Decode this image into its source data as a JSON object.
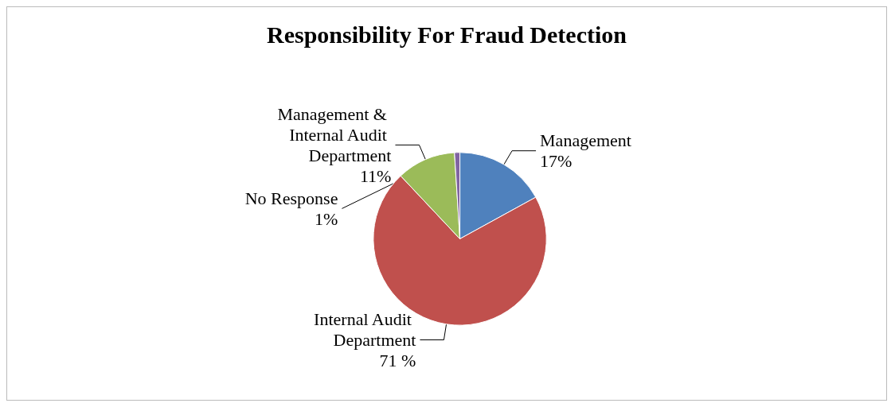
{
  "chart_data": {
    "type": "pie",
    "title": "Responsibility For Fraud Detection",
    "categories": [
      "Management",
      "Internal Audit Department",
      "Management & Internal Audit Department",
      "No Response"
    ],
    "values": [
      17,
      71,
      11,
      1
    ],
    "value_labels": [
      "17%",
      "71 %",
      "11%",
      "1%"
    ],
    "colors": [
      "#4f81bd",
      "#c0504d",
      "#9bbb59",
      "#8064a2"
    ],
    "legend": false
  }
}
